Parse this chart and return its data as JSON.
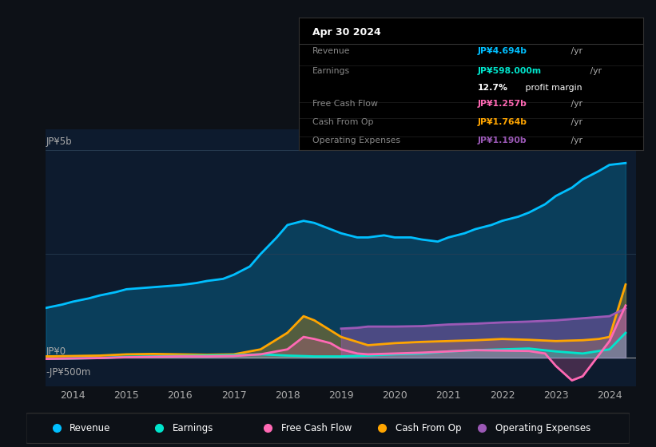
{
  "bg_color": "#0d1117",
  "plot_bg": "#0d1b2e",
  "title_text": "Apr 30 2024",
  "tooltip": {
    "Revenue": {
      "value": "JP¥4.694b /yr",
      "color": "#00bfff"
    },
    "Earnings": {
      "value": "JP¥598.000m /yr",
      "color": "#00e5cc"
    },
    "profit_margin": "12.7% profit margin",
    "Free Cash Flow": {
      "value": "JP¥1.257b /yr",
      "color": "#ff69b4"
    },
    "Cash From Op": {
      "value": "JP¥1.764b /yr",
      "color": "#ffa500"
    },
    "Operating Expenses": {
      "value": "JP¥1.190b /yr",
      "color": "#9b59b6"
    }
  },
  "ylabel_top": "JP¥5b",
  "ylabel_zero": "JP¥0",
  "ylabel_neg": "-JP¥500m",
  "legend": [
    {
      "label": "Revenue",
      "color": "#00bfff"
    },
    {
      "label": "Earnings",
      "color": "#00e5cc"
    },
    {
      "label": "Free Cash Flow",
      "color": "#ff69b4"
    },
    {
      "label": "Cash From Op",
      "color": "#ffa500"
    },
    {
      "label": "Operating Expenses",
      "color": "#9b59b6"
    }
  ],
  "xlim": [
    2013.5,
    2024.5
  ],
  "ylim": [
    -700,
    5500
  ],
  "line_width": 2.0,
  "revenue": {
    "x": [
      2013.5,
      2013.8,
      2014.0,
      2014.3,
      2014.5,
      2014.8,
      2015.0,
      2015.3,
      2015.5,
      2015.8,
      2016.0,
      2016.3,
      2016.5,
      2016.8,
      2017.0,
      2017.3,
      2017.5,
      2017.8,
      2018.0,
      2018.3,
      2018.5,
      2018.8,
      2019.0,
      2019.3,
      2019.5,
      2019.8,
      2020.0,
      2020.3,
      2020.5,
      2020.8,
      2021.0,
      2021.3,
      2021.5,
      2021.8,
      2022.0,
      2022.3,
      2022.5,
      2022.8,
      2023.0,
      2023.3,
      2023.5,
      2023.8,
      2024.0,
      2024.3
    ],
    "y": [
      1200,
      1280,
      1350,
      1430,
      1500,
      1580,
      1650,
      1680,
      1700,
      1730,
      1750,
      1800,
      1850,
      1900,
      2000,
      2200,
      2500,
      2900,
      3200,
      3300,
      3250,
      3100,
      3000,
      2900,
      2900,
      2950,
      2900,
      2900,
      2850,
      2800,
      2900,
      3000,
      3100,
      3200,
      3300,
      3400,
      3500,
      3700,
      3900,
      4100,
      4300,
      4500,
      4650,
      4694
    ]
  },
  "earnings": {
    "x": [
      2013.5,
      2014.0,
      2014.5,
      2015.0,
      2015.5,
      2016.0,
      2016.5,
      2017.0,
      2017.5,
      2018.0,
      2018.5,
      2019.0,
      2019.5,
      2020.0,
      2020.5,
      2021.0,
      2021.5,
      2022.0,
      2022.5,
      2023.0,
      2023.5,
      2024.0,
      2024.3
    ],
    "y": [
      -30,
      -20,
      -10,
      20,
      30,
      40,
      50,
      60,
      80,
      50,
      30,
      30,
      50,
      80,
      100,
      150,
      180,
      200,
      220,
      150,
      100,
      200,
      598
    ]
  },
  "free_cash_flow": {
    "x": [
      2013.5,
      2014.0,
      2014.5,
      2015.0,
      2015.5,
      2016.0,
      2016.5,
      2017.0,
      2017.5,
      2018.0,
      2018.3,
      2018.5,
      2018.8,
      2019.0,
      2019.3,
      2019.5,
      2020.0,
      2020.5,
      2021.0,
      2021.5,
      2022.0,
      2022.5,
      2022.8,
      2023.0,
      2023.3,
      2023.5,
      2024.0,
      2024.3
    ],
    "y": [
      -30,
      -20,
      -10,
      10,
      20,
      30,
      30,
      40,
      80,
      200,
      500,
      450,
      350,
      200,
      100,
      80,
      100,
      120,
      150,
      180,
      170,
      160,
      100,
      -200,
      -550,
      -450,
      400,
      1257
    ]
  },
  "cash_from_op": {
    "x": [
      2013.5,
      2014.0,
      2014.5,
      2015.0,
      2015.5,
      2016.0,
      2016.5,
      2017.0,
      2017.5,
      2018.0,
      2018.3,
      2018.5,
      2019.0,
      2019.5,
      2020.0,
      2020.5,
      2021.0,
      2021.5,
      2022.0,
      2022.5,
      2023.0,
      2023.5,
      2023.8,
      2024.0,
      2024.3
    ],
    "y": [
      30,
      40,
      50,
      80,
      90,
      80,
      70,
      80,
      200,
      600,
      1000,
      900,
      500,
      300,
      350,
      380,
      400,
      420,
      450,
      430,
      400,
      420,
      450,
      500,
      1764
    ]
  },
  "operating_expenses": {
    "x": [
      2019.0,
      2019.3,
      2019.5,
      2020.0,
      2020.5,
      2021.0,
      2021.5,
      2022.0,
      2022.5,
      2023.0,
      2023.5,
      2024.0,
      2024.3
    ],
    "y": [
      700,
      720,
      750,
      750,
      760,
      800,
      820,
      850,
      870,
      900,
      950,
      1000,
      1190
    ]
  },
  "xticks": [
    2014,
    2015,
    2016,
    2017,
    2018,
    2019,
    2020,
    2021,
    2022,
    2023,
    2024
  ]
}
